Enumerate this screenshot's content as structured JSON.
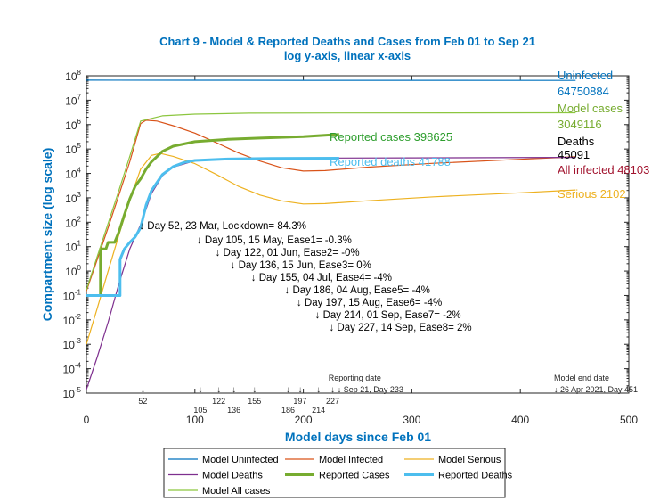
{
  "chart_data": {
    "type": "line",
    "title": "Chart 9 - Model & Reported Deaths and Cases from Feb 01 to Sep 21",
    "subtitle": "log y-axis, linear x-axis",
    "xlabel": "Model days since Feb 01",
    "ylabel": "Compartment size (log scale)",
    "xlim": [
      0,
      500
    ],
    "ylim": [
      1e-05,
      100000000.0
    ],
    "yscale": "log",
    "xticks": [
      "0",
      "100",
      "200",
      "300",
      "400",
      "500"
    ],
    "yticks": [
      {
        "base": "10",
        "exp": "8"
      },
      {
        "base": "10",
        "exp": "7"
      },
      {
        "base": "10",
        "exp": "6"
      },
      {
        "base": "10",
        "exp": "5"
      },
      {
        "base": "10",
        "exp": "4"
      },
      {
        "base": "10",
        "exp": "3"
      },
      {
        "base": "10",
        "exp": "2"
      },
      {
        "base": "10",
        "exp": "1"
      },
      {
        "base": "10",
        "exp": "0"
      },
      {
        "base": "10",
        "exp": "-1"
      },
      {
        "base": "10",
        "exp": "-2"
      },
      {
        "base": "10",
        "exp": "-3"
      },
      {
        "base": "10",
        "exp": "-4"
      },
      {
        "base": "10",
        "exp": "-5"
      }
    ],
    "grid": false,
    "legend_placement": "bottom-outside",
    "series": [
      {
        "name": "Model Uninfected",
        "color": "#0072BD",
        "width": 1.2,
        "points": [
          [
            0,
            66000000.0
          ],
          [
            100,
            65500000.0
          ],
          [
            200,
            65000000.0
          ],
          [
            451,
            64750000.0
          ]
        ]
      },
      {
        "name": "Model Infected",
        "color": "#D95319",
        "width": 1.2,
        "points": [
          [
            0,
            0.15
          ],
          [
            10,
            3
          ],
          [
            20,
            60
          ],
          [
            30,
            1300.0
          ],
          [
            40,
            30000.0
          ],
          [
            50,
            1100000.0
          ],
          [
            55,
            1500000.0
          ],
          [
            65,
            1400000.0
          ],
          [
            80,
            900000.0
          ],
          [
            100,
            450000.0
          ],
          [
            120,
            180000.0
          ],
          [
            140,
            70000.0
          ],
          [
            160,
            32000.0
          ],
          [
            180,
            17000.0
          ],
          [
            200,
            12500.0
          ],
          [
            220,
            13000.0
          ],
          [
            260,
            18000.0
          ],
          [
            320,
            26000.0
          ],
          [
            400,
            38000.0
          ],
          [
            451,
            48100.0
          ]
        ]
      },
      {
        "name": "Model Serious",
        "color": "#EDB120",
        "width": 1.2,
        "points": [
          [
            0,
            0.001
          ],
          [
            10,
            0.03
          ],
          [
            20,
            1
          ],
          [
            30,
            30
          ],
          [
            40,
            800
          ],
          [
            50,
            15000.0
          ],
          [
            60,
            55000.0
          ],
          [
            68,
            66000.0
          ],
          [
            80,
            50000.0
          ],
          [
            100,
            25000.0
          ],
          [
            120,
            9000.0
          ],
          [
            140,
            3000.0
          ],
          [
            160,
            1300.0
          ],
          [
            180,
            750
          ],
          [
            200,
            560
          ],
          [
            220,
            580
          ],
          [
            260,
            760
          ],
          [
            320,
            1100.0
          ],
          [
            400,
            1600.0
          ],
          [
            451,
            2102
          ]
        ]
      },
      {
        "name": "Model Deaths",
        "color": "#7E2F8E",
        "width": 1.2,
        "points": [
          [
            0,
            1.4e-05
          ],
          [
            10,
            0.0003
          ],
          [
            20,
            0.008
          ],
          [
            30,
            0.3
          ],
          [
            40,
            8
          ],
          [
            50,
            80
          ],
          [
            60,
            1500.0
          ],
          [
            70,
            8000.0
          ],
          [
            80,
            18000.0
          ],
          [
            100,
            33000.0
          ],
          [
            130,
            40000.0
          ],
          [
            170,
            42000.0
          ],
          [
            233,
            42500.0
          ],
          [
            300,
            43500.0
          ],
          [
            451,
            45091
          ]
        ]
      },
      {
        "name": "Reported Cases",
        "color": "#77AC30",
        "width": 3,
        "points": [
          [
            0,
            0.1
          ],
          [
            13,
            0.1
          ],
          [
            13,
            8
          ],
          [
            18,
            8
          ],
          [
            20,
            15
          ],
          [
            26,
            15
          ],
          [
            30,
            40
          ],
          [
            35,
            200
          ],
          [
            40,
            900
          ],
          [
            45,
            3000.0
          ],
          [
            50,
            6000.0
          ],
          [
            55,
            15000.0
          ],
          [
            60,
            30000.0
          ],
          [
            70,
            80000.0
          ],
          [
            80,
            130000.0
          ],
          [
            100,
            200000.0
          ],
          [
            130,
            250000.0
          ],
          [
            160,
            280000.0
          ],
          [
            200,
            320000.0
          ],
          [
            233,
            398625
          ]
        ]
      },
      {
        "name": "Reported Deaths",
        "color": "#4DBEEE",
        "width": 3,
        "points": [
          [
            0,
            0.1
          ],
          [
            31,
            0.1
          ],
          [
            31,
            3
          ],
          [
            35,
            8
          ],
          [
            40,
            15
          ],
          [
            45,
            25
          ],
          [
            50,
            60
          ],
          [
            55,
            500
          ],
          [
            60,
            2000.0
          ],
          [
            70,
            9000.0
          ],
          [
            80,
            19000.0
          ],
          [
            90,
            28000.0
          ],
          [
            100,
            34000.0
          ],
          [
            130,
            39000.0
          ],
          [
            170,
            41000.0
          ],
          [
            233,
            41788
          ]
        ]
      },
      {
        "name": "Model All cases",
        "color": "#8CC63F",
        "width": 1.2,
        "points": [
          [
            0,
            0.17
          ],
          [
            10,
            4
          ],
          [
            20,
            90
          ],
          [
            30,
            2000.0
          ],
          [
            40,
            50000.0
          ],
          [
            50,
            1400000.0
          ],
          [
            70,
            2300000.0
          ],
          [
            100,
            2700000.0
          ],
          [
            150,
            2950000.0
          ],
          [
            233,
            3000000.0
          ],
          [
            451,
            3049116
          ]
        ]
      }
    ],
    "end_labels": [
      {
        "text": "Uninfected",
        "color": "#0072BD"
      },
      {
        "text": "64750884",
        "color": "#0072BD"
      },
      {
        "text": "Model cases",
        "color": "#77AC30"
      },
      {
        "text": "3049116",
        "color": "#77AC30"
      },
      {
        "text": "Deaths",
        "color": "#000000"
      },
      {
        "text": "45091",
        "color": "#000000"
      },
      {
        "text": "All infected 48103",
        "color": "#A2142F"
      },
      {
        "text": "Serious 2102",
        "color": "#EDB120"
      },
      {
        "text": "Reported cases 398625",
        "color": "#2E9E2E"
      },
      {
        "text": "Reported deaths 41788",
        "color": "#4DBEEE"
      }
    ],
    "interventions": [
      {
        "day": 52,
        "text": "↓ Day 52, 23 Mar, Lockdown=  84.3%"
      },
      {
        "day": 105,
        "text": "↓ Day 105, 15 May, Ease1=  -0.3%"
      },
      {
        "day": 122,
        "text": "↓ Day 122, 01 Jun, Ease2=  -0%"
      },
      {
        "day": 136,
        "text": "↓ Day 136, 15 Jun, Ease3=  0%"
      },
      {
        "day": 155,
        "text": "↓ Day 155, 04 Jul, Ease4=  -4%"
      },
      {
        "day": 186,
        "text": "↓ Day 186, 04 Aug, Ease5=  -4%"
      },
      {
        "day": 197,
        "text": "↓ Day 197, 15 Aug, Ease6=  -4%"
      },
      {
        "day": 214,
        "text": "↓ Day 214, 01 Sep, Ease7=  -2%"
      },
      {
        "day": 227,
        "text": "↓ Day 227, 14 Sep, Ease8=  2%"
      }
    ],
    "day_markers": [
      "52",
      "105",
      "122",
      "136",
      "155",
      "186",
      "197",
      "214",
      "227"
    ],
    "reporting_date": {
      "day": 233,
      "title": "Reporting date",
      "text": "↓ Sep 21, Day 233"
    },
    "model_end_date": {
      "day": 451,
      "title": "Model end date",
      "text": "↓ 26 Apr 2021, Day 451"
    }
  }
}
